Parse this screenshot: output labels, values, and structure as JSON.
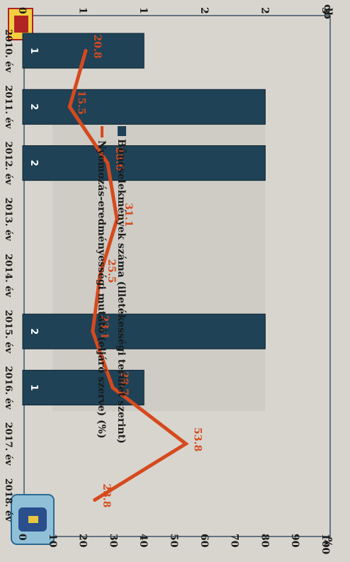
{
  "chart_data": {
    "type": "bar",
    "categories": [
      "2010. év",
      "2011. év",
      "2012. év",
      "2013. év",
      "2014. év",
      "2015. év",
      "2016. év",
      "2017. év",
      "2018. év"
    ],
    "series": [
      {
        "name": "Bűncselekmények száma (illetékességi terület szerint)",
        "type": "bar",
        "axis": "left",
        "values": [
          1,
          2,
          2,
          null,
          null,
          2,
          1,
          null,
          null
        ],
        "bar_labels": [
          "1",
          "2",
          "2",
          "",
          "",
          "2",
          "1",
          "",
          ""
        ],
        "color": "#1f4256"
      },
      {
        "name": "Nyomozás-eredményességi mutató (eljáró szerve) (%)",
        "type": "line",
        "axis": "right",
        "values": [
          20.8,
          15.5,
          28.0,
          31.1,
          25.5,
          23.1,
          29.7,
          53.8,
          23.8
        ],
        "data_labels": [
          "20.8",
          "15.5",
          "28.0",
          "31.1",
          "25.5",
          "23.1",
          "29.7",
          "53.8",
          "23.8"
        ],
        "color": "#d64a1e"
      }
    ],
    "left_axis": {
      "label": "db",
      "ticks": [
        "0",
        "1",
        "1",
        "2",
        "2",
        "3"
      ],
      "ylim": [
        0,
        2.5
      ]
    },
    "right_axis": {
      "label": "%",
      "ticks": [
        "0",
        "10",
        "20",
        "30",
        "40",
        "50",
        "60",
        "70",
        "80",
        "90",
        "100"
      ],
      "ylim": [
        0,
        100
      ]
    },
    "legend_position": "top",
    "grid": false,
    "orientation": "rotated-90-clockwise"
  }
}
